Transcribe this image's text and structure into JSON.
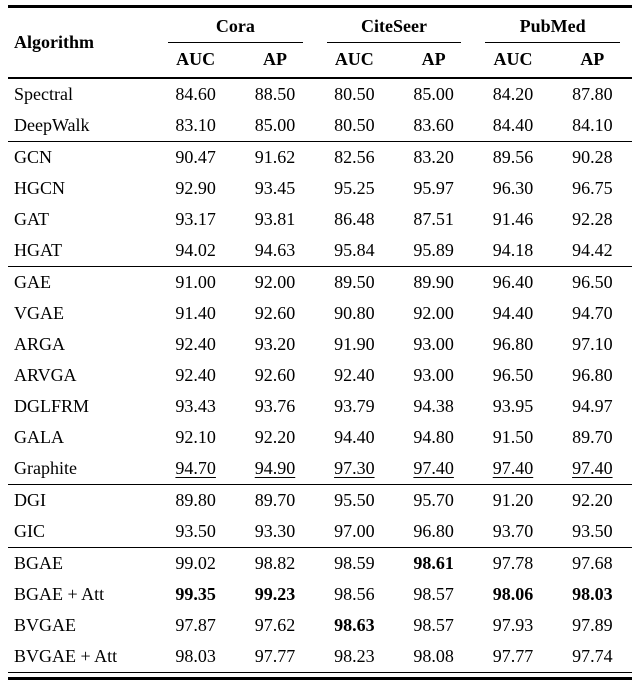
{
  "table": {
    "header": {
      "algorithm": "Algorithm",
      "groups": [
        "Cora",
        "CiteSeer",
        "PubMed"
      ],
      "sub": [
        "AUC",
        "AP"
      ]
    },
    "groups": [
      {
        "rows": [
          {
            "name": "Spectral",
            "values": [
              "84.60",
              "88.50",
              "80.50",
              "85.00",
              "84.20",
              "87.80"
            ]
          },
          {
            "name": "DeepWalk",
            "values": [
              "83.10",
              "85.00",
              "80.50",
              "83.60",
              "84.40",
              "84.10"
            ]
          }
        ]
      },
      {
        "rows": [
          {
            "name": "GCN",
            "values": [
              "90.47",
              "91.62",
              "82.56",
              "83.20",
              "89.56",
              "90.28"
            ]
          },
          {
            "name": "HGCN",
            "values": [
              "92.90",
              "93.45",
              "95.25",
              "95.97",
              "96.30",
              "96.75"
            ]
          },
          {
            "name": "GAT",
            "values": [
              "93.17",
              "93.81",
              "86.48",
              "87.51",
              "91.46",
              "92.28"
            ]
          },
          {
            "name": "HGAT",
            "values": [
              "94.02",
              "94.63",
              "95.84",
              "95.89",
              "94.18",
              "94.42"
            ]
          }
        ]
      },
      {
        "rows": [
          {
            "name": "GAE",
            "values": [
              "91.00",
              "92.00",
              "89.50",
              "89.90",
              "96.40",
              "96.50"
            ]
          },
          {
            "name": "VGAE",
            "values": [
              "91.40",
              "92.60",
              "90.80",
              "92.00",
              "94.40",
              "94.70"
            ]
          },
          {
            "name": "ARGA",
            "values": [
              "92.40",
              "93.20",
              "91.90",
              "93.00",
              "96.80",
              "97.10"
            ]
          },
          {
            "name": "ARVGA",
            "values": [
              "92.40",
              "92.60",
              "92.40",
              "93.00",
              "96.50",
              "96.80"
            ]
          },
          {
            "name": "DGLFRM",
            "values": [
              "93.43",
              "93.76",
              "93.79",
              "94.38",
              "93.95",
              "94.97"
            ]
          },
          {
            "name": "GALA",
            "values": [
              "92.10",
              "92.20",
              "94.40",
              "94.80",
              "91.50",
              "89.70"
            ]
          },
          {
            "name": "Graphite",
            "values": [
              {
                "v": "94.70",
                "u": true
              },
              {
                "v": "94.90",
                "u": true
              },
              {
                "v": "97.30",
                "u": true
              },
              {
                "v": "97.40",
                "u": true
              },
              {
                "v": "97.40",
                "u": true
              },
              {
                "v": "97.40",
                "u": true
              }
            ]
          }
        ]
      },
      {
        "rows": [
          {
            "name": "DGI",
            "values": [
              "89.80",
              "89.70",
              "95.50",
              "95.70",
              "91.20",
              "92.20"
            ]
          },
          {
            "name": "GIC",
            "values": [
              "93.50",
              "93.30",
              "97.00",
              "96.80",
              "93.70",
              "93.50"
            ]
          }
        ]
      },
      {
        "rows": [
          {
            "name": "BGAE",
            "values": [
              "99.02",
              "98.82",
              "98.59",
              {
                "v": "98.61",
                "b": true
              },
              "97.78",
              "97.68"
            ]
          },
          {
            "name": "BGAE + Att",
            "values": [
              {
                "v": "99.35",
                "b": true
              },
              {
                "v": "99.23",
                "b": true
              },
              "98.56",
              "98.57",
              {
                "v": "98.06",
                "b": true
              },
              {
                "v": "98.03",
                "b": true
              }
            ]
          },
          {
            "name": "BVGAE",
            "values": [
              "97.87",
              "97.62",
              {
                "v": "98.63",
                "b": true
              },
              "98.57",
              "97.93",
              "97.89"
            ]
          },
          {
            "name": "BVGAE + Att",
            "values": [
              "98.03",
              "97.77",
              "98.23",
              "98.08",
              "97.77",
              "97.74"
            ]
          }
        ]
      }
    ]
  }
}
